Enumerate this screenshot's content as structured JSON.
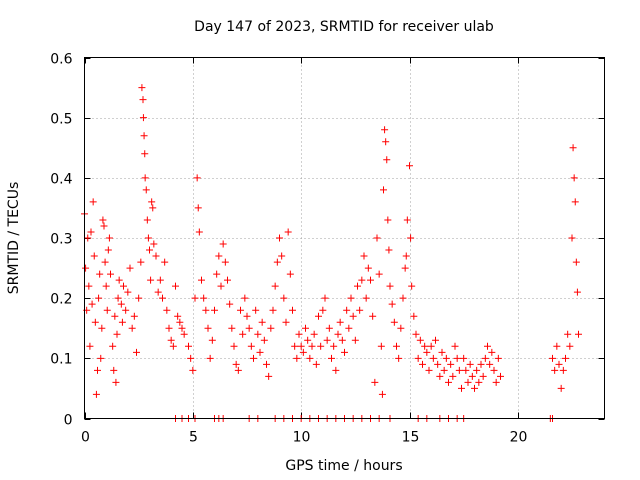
{
  "chart_data": {
    "type": "scatter",
    "title": "Day 147 of 2023, SRMTID for receiver ulab",
    "xlabel": "GPS time / hours",
    "ylabel": "SRMTID / TECUs",
    "xlim": [
      0,
      24
    ],
    "ylim": [
      0,
      0.6
    ],
    "x_ticks": [
      0,
      5,
      10,
      15,
      20
    ],
    "y_ticks": [
      0,
      0.1,
      0.2,
      0.3,
      0.4,
      0.5,
      0.6
    ],
    "x_tick_labels": [
      "0",
      "5",
      "10",
      "15",
      "20"
    ],
    "y_tick_labels": [
      "0",
      "0.1",
      "0.2",
      "0.3",
      "0.4",
      "0.5",
      "0.6"
    ],
    "grid": true,
    "marker": "+",
    "color": "#ff0000",
    "series": [
      {
        "name": "SRMTID",
        "points": [
          [
            0.0,
            0.34
          ],
          [
            0.05,
            0.25
          ],
          [
            0.1,
            0.18
          ],
          [
            0.15,
            0.3
          ],
          [
            0.2,
            0.22
          ],
          [
            0.25,
            0.12
          ],
          [
            0.3,
            0.31
          ],
          [
            0.35,
            0.19
          ],
          [
            0.4,
            0.36
          ],
          [
            0.45,
            0.27
          ],
          [
            0.5,
            0.16
          ],
          [
            0.55,
            0.04
          ],
          [
            0.6,
            0.08
          ],
          [
            0.65,
            0.2
          ],
          [
            0.7,
            0.24
          ],
          [
            0.75,
            0.1
          ],
          [
            0.8,
            0.15
          ],
          [
            0.85,
            0.33
          ],
          [
            0.9,
            0.32
          ],
          [
            0.95,
            0.26
          ],
          [
            1.0,
            0.22
          ],
          [
            1.05,
            0.18
          ],
          [
            1.1,
            0.28
          ],
          [
            1.15,
            0.3
          ],
          [
            1.2,
            0.24
          ],
          [
            1.3,
            0.12
          ],
          [
            1.35,
            0.08
          ],
          [
            1.4,
            0.17
          ],
          [
            1.45,
            0.06
          ],
          [
            1.5,
            0.14
          ],
          [
            1.55,
            0.2
          ],
          [
            1.6,
            0.23
          ],
          [
            1.7,
            0.19
          ],
          [
            1.75,
            0.16
          ],
          [
            1.8,
            0.22
          ],
          [
            1.9,
            0.18
          ],
          [
            2.0,
            0.21
          ],
          [
            2.1,
            0.25
          ],
          [
            2.2,
            0.15
          ],
          [
            2.3,
            0.17
          ],
          [
            2.4,
            0.11
          ],
          [
            2.5,
            0.2
          ],
          [
            2.6,
            0.26
          ],
          [
            2.65,
            0.55
          ],
          [
            2.7,
            0.53
          ],
          [
            2.72,
            0.5
          ],
          [
            2.75,
            0.47
          ],
          [
            2.78,
            0.44
          ],
          [
            2.8,
            0.4
          ],
          [
            2.85,
            0.38
          ],
          [
            2.9,
            0.33
          ],
          [
            2.95,
            0.3
          ],
          [
            3.0,
            0.28
          ],
          [
            3.05,
            0.23
          ],
          [
            3.1,
            0.36
          ],
          [
            3.15,
            0.35
          ],
          [
            3.2,
            0.29
          ],
          [
            3.3,
            0.27
          ],
          [
            3.4,
            0.21
          ],
          [
            3.5,
            0.23
          ],
          [
            3.6,
            0.2
          ],
          [
            3.7,
            0.26
          ],
          [
            3.8,
            0.18
          ],
          [
            3.9,
            0.15
          ],
          [
            4.0,
            0.13
          ],
          [
            4.1,
            0.12
          ],
          [
            4.2,
            0.22
          ],
          [
            4.3,
            0.17
          ],
          [
            4.4,
            0.16
          ],
          [
            4.5,
            0.15
          ],
          [
            4.6,
            0.14
          ],
          [
            4.8,
            0.12
          ],
          [
            4.9,
            0.1
          ],
          [
            5.0,
            0.08
          ],
          [
            5.1,
            0.2
          ],
          [
            5.2,
            0.4
          ],
          [
            5.25,
            0.35
          ],
          [
            5.3,
            0.31
          ],
          [
            5.4,
            0.23
          ],
          [
            5.5,
            0.2
          ],
          [
            5.6,
            0.18
          ],
          [
            5.7,
            0.15
          ],
          [
            5.8,
            0.1
          ],
          [
            5.9,
            0.13
          ],
          [
            6.0,
            0.18
          ],
          [
            6.1,
            0.24
          ],
          [
            6.2,
            0.27
          ],
          [
            6.3,
            0.22
          ],
          [
            6.4,
            0.29
          ],
          [
            6.5,
            0.26
          ],
          [
            6.6,
            0.23
          ],
          [
            6.7,
            0.19
          ],
          [
            6.8,
            0.15
          ],
          [
            6.9,
            0.12
          ],
          [
            7.0,
            0.09
          ],
          [
            7.1,
            0.08
          ],
          [
            7.2,
            0.18
          ],
          [
            7.3,
            0.14
          ],
          [
            7.4,
            0.2
          ],
          [
            7.5,
            0.17
          ],
          [
            7.6,
            0.15
          ],
          [
            7.7,
            0.12
          ],
          [
            7.8,
            0.1
          ],
          [
            7.9,
            0.18
          ],
          [
            8.0,
            0.14
          ],
          [
            8.1,
            0.11
          ],
          [
            8.2,
            0.16
          ],
          [
            8.3,
            0.13
          ],
          [
            8.4,
            0.09
          ],
          [
            8.5,
            0.07
          ],
          [
            8.6,
            0.15
          ],
          [
            8.7,
            0.18
          ],
          [
            8.8,
            0.22
          ],
          [
            8.9,
            0.26
          ],
          [
            9.0,
            0.3
          ],
          [
            9.1,
            0.27
          ],
          [
            9.2,
            0.2
          ],
          [
            9.3,
            0.16
          ],
          [
            9.4,
            0.31
          ],
          [
            9.5,
            0.24
          ],
          [
            9.6,
            0.18
          ],
          [
            9.7,
            0.12
          ],
          [
            9.8,
            0.1
          ],
          [
            9.9,
            0.14
          ],
          [
            10.0,
            0.12
          ],
          [
            10.1,
            0.11
          ],
          [
            10.2,
            0.15
          ],
          [
            10.3,
            0.13
          ],
          [
            10.4,
            0.1
          ],
          [
            10.5,
            0.12
          ],
          [
            10.6,
            0.14
          ],
          [
            10.7,
            0.09
          ],
          [
            10.8,
            0.17
          ],
          [
            10.9,
            0.12
          ],
          [
            11.0,
            0.18
          ],
          [
            11.1,
            0.2
          ],
          [
            11.2,
            0.13
          ],
          [
            11.3,
            0.15
          ],
          [
            11.4,
            0.1
          ],
          [
            11.5,
            0.12
          ],
          [
            11.6,
            0.08
          ],
          [
            11.7,
            0.14
          ],
          [
            11.8,
            0.16
          ],
          [
            11.9,
            0.13
          ],
          [
            12.0,
            0.11
          ],
          [
            12.1,
            0.18
          ],
          [
            12.2,
            0.15
          ],
          [
            12.3,
            0.2
          ],
          [
            12.4,
            0.17
          ],
          [
            12.5,
            0.13
          ],
          [
            12.6,
            0.22
          ],
          [
            12.7,
            0.18
          ],
          [
            12.8,
            0.23
          ],
          [
            12.9,
            0.27
          ],
          [
            13.0,
            0.2
          ],
          [
            13.1,
            0.25
          ],
          [
            13.2,
            0.23
          ],
          [
            13.3,
            0.17
          ],
          [
            13.4,
            0.06
          ],
          [
            13.5,
            0.3
          ],
          [
            13.6,
            0.24
          ],
          [
            13.7,
            0.12
          ],
          [
            13.75,
            0.04
          ],
          [
            13.8,
            0.38
          ],
          [
            13.85,
            0.48
          ],
          [
            13.9,
            0.46
          ],
          [
            13.95,
            0.43
          ],
          [
            14.0,
            0.33
          ],
          [
            14.05,
            0.28
          ],
          [
            14.1,
            0.22
          ],
          [
            14.2,
            0.19
          ],
          [
            14.3,
            0.16
          ],
          [
            14.4,
            0.12
          ],
          [
            14.5,
            0.1
          ],
          [
            14.6,
            0.15
          ],
          [
            14.7,
            0.2
          ],
          [
            14.8,
            0.25
          ],
          [
            14.85,
            0.27
          ],
          [
            14.9,
            0.33
          ],
          [
            15.0,
            0.42
          ],
          [
            15.05,
            0.3
          ],
          [
            15.1,
            0.22
          ],
          [
            15.2,
            0.17
          ],
          [
            15.3,
            0.14
          ],
          [
            15.4,
            0.1
          ],
          [
            15.5,
            0.13
          ],
          [
            15.6,
            0.09
          ],
          [
            15.7,
            0.12
          ],
          [
            15.8,
            0.11
          ],
          [
            15.9,
            0.08
          ],
          [
            16.0,
            0.12
          ],
          [
            16.1,
            0.1
          ],
          [
            16.2,
            0.13
          ],
          [
            16.3,
            0.09
          ],
          [
            16.4,
            0.07
          ],
          [
            16.5,
            0.11
          ],
          [
            16.6,
            0.08
          ],
          [
            16.7,
            0.1
          ],
          [
            16.8,
            0.06
          ],
          [
            16.9,
            0.09
          ],
          [
            17.0,
            0.07
          ],
          [
            17.1,
            0.12
          ],
          [
            17.2,
            0.1
          ],
          [
            17.3,
            0.08
          ],
          [
            17.4,
            0.05
          ],
          [
            17.5,
            0.1
          ],
          [
            17.6,
            0.08
          ],
          [
            17.7,
            0.06
          ],
          [
            17.8,
            0.09
          ],
          [
            17.9,
            0.07
          ],
          [
            18.0,
            0.05
          ],
          [
            18.1,
            0.08
          ],
          [
            18.2,
            0.06
          ],
          [
            18.3,
            0.09
          ],
          [
            18.4,
            0.07
          ],
          [
            18.5,
            0.1
          ],
          [
            18.6,
            0.12
          ],
          [
            18.7,
            0.09
          ],
          [
            18.8,
            0.11
          ],
          [
            18.9,
            0.08
          ],
          [
            19.0,
            0.06
          ],
          [
            19.1,
            0.1
          ],
          [
            19.2,
            0.07
          ],
          [
            21.6,
            0.1
          ],
          [
            21.7,
            0.08
          ],
          [
            21.8,
            0.12
          ],
          [
            21.9,
            0.09
          ],
          [
            22.0,
            0.05
          ],
          [
            22.1,
            0.08
          ],
          [
            22.2,
            0.1
          ],
          [
            22.3,
            0.14
          ],
          [
            22.4,
            0.12
          ],
          [
            22.5,
            0.3
          ],
          [
            22.55,
            0.45
          ],
          [
            22.6,
            0.4
          ],
          [
            22.65,
            0.36
          ],
          [
            22.7,
            0.26
          ],
          [
            22.75,
            0.21
          ],
          [
            22.8,
            0.14
          ],
          [
            4.2,
            0.0
          ],
          [
            4.5,
            0.0
          ],
          [
            4.8,
            0.0
          ],
          [
            5.1,
            0.0
          ],
          [
            6.0,
            0.0
          ],
          [
            6.2,
            0.0
          ],
          [
            6.4,
            0.0
          ],
          [
            7.6,
            0.0
          ],
          [
            8.0,
            0.0
          ],
          [
            8.8,
            0.0
          ],
          [
            9.2,
            0.0
          ],
          [
            9.6,
            0.0
          ],
          [
            10.0,
            0.0
          ],
          [
            10.4,
            0.0
          ],
          [
            10.8,
            0.0
          ],
          [
            11.2,
            0.0
          ],
          [
            11.6,
            0.0
          ],
          [
            12.0,
            0.0
          ],
          [
            12.4,
            0.0
          ],
          [
            12.8,
            0.0
          ],
          [
            13.2,
            0.0
          ],
          [
            13.6,
            0.0
          ],
          [
            14.1,
            0.0
          ],
          [
            15.4,
            0.0
          ],
          [
            15.8,
            0.0
          ],
          [
            16.4,
            0.0
          ],
          [
            16.8,
            0.0
          ],
          [
            17.2,
            0.0
          ],
          [
            17.5,
            0.0
          ],
          [
            21.5,
            0.0
          ],
          [
            21.6,
            0.0
          ]
        ]
      }
    ]
  }
}
